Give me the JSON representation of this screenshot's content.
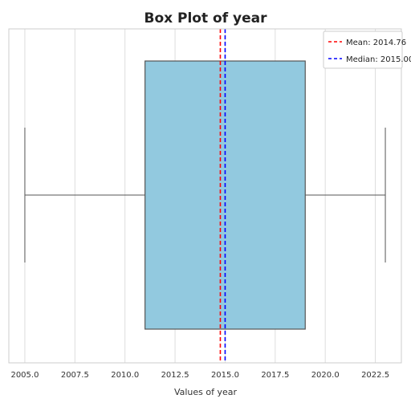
{
  "chart_data": {
    "type": "box",
    "title": "Box Plot of year",
    "xlabel": "Values of year",
    "ylabel": "",
    "xlim": [
      2004.2,
      2023.8
    ],
    "xticks": [
      2005.0,
      2007.5,
      2010.0,
      2012.5,
      2015.0,
      2017.5,
      2020.0,
      2022.5
    ],
    "xtick_labels": [
      "2005.0",
      "2007.5",
      "2010.0",
      "2012.5",
      "2015.0",
      "2017.5",
      "2020.0",
      "2022.5"
    ],
    "grid": true,
    "box": {
      "whisker_low": 2005.0,
      "q1": 2011.0,
      "median": 2015.0,
      "q3": 2019.0,
      "whisker_high": 2023.0
    },
    "mean": 2014.76,
    "median": 2015.0,
    "legend_position": "top-right",
    "legend": [
      {
        "label": "Mean: 2014.76",
        "color": "#ff0000",
        "line": "dashed"
      },
      {
        "label": "Median: 2015.00",
        "color": "#0000ff",
        "line": "dashed"
      }
    ],
    "colors": {
      "box_fill": "#92c9df",
      "box_edge": "#555555",
      "whisker": "#555555",
      "grid": "#dddddd"
    }
  }
}
